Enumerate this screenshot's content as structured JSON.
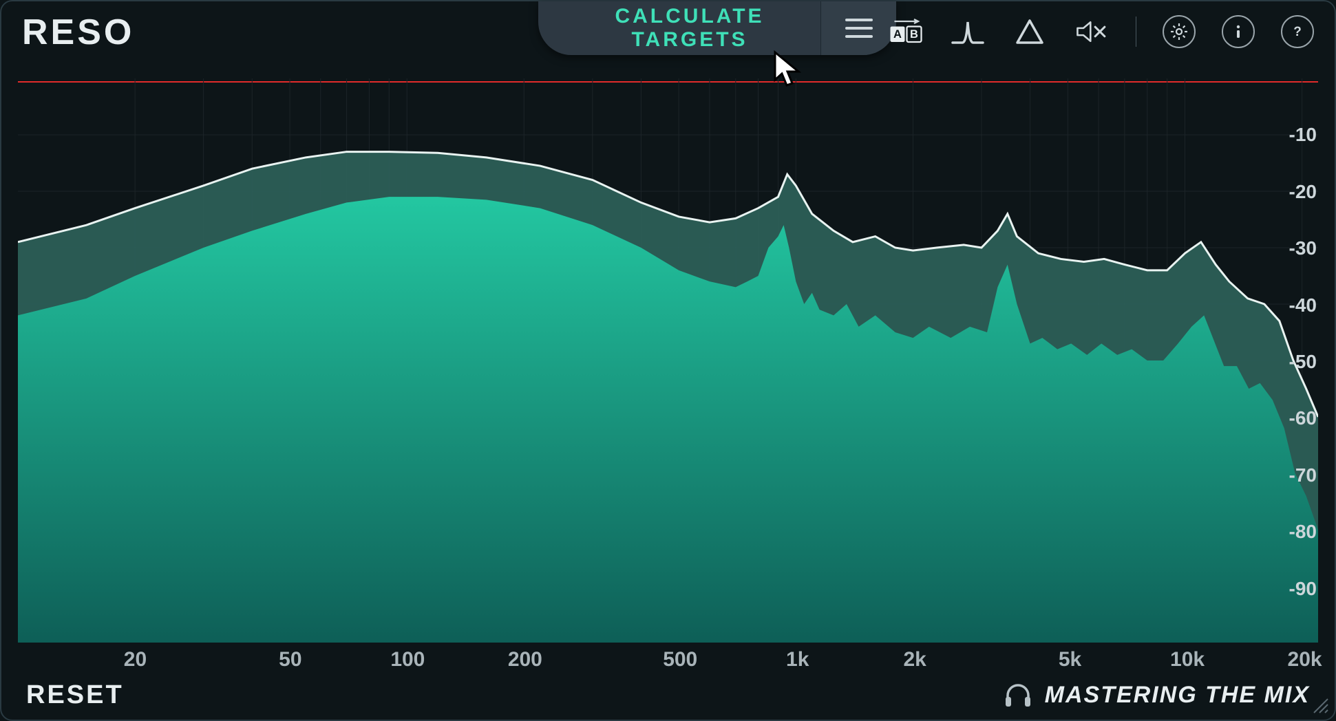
{
  "app": {
    "title": "RESO",
    "calculate_label": "CALCULATE TARGETS",
    "reset_label": "RESET",
    "company_name": "MASTERING THE MIX"
  },
  "colors": {
    "background": "#0d1518",
    "panel_border": "#2a3a42",
    "text_primary": "#e8eef0",
    "text_secondary": "#a9b4b9",
    "accent_teal": "#3fe0b8",
    "pill_bg": "#2d3842",
    "zero_line": "#e22b2b",
    "grid": "#1c2428",
    "curve_peak_stroke": "#e9f3f1",
    "curve_peak_fill": "#2d625a",
    "curve_rms_fill_top": "#23c7a1",
    "curve_rms_fill_bottom": "#0e5f57",
    "icon": "#cfd8dc"
  },
  "toolbar": {
    "items": [
      {
        "name": "ab-compare-icon",
        "interactable": true
      },
      {
        "name": "resonance-bell-icon",
        "interactable": true
      },
      {
        "name": "delta-triangle-icon",
        "interactable": true
      },
      {
        "name": "mute-icon",
        "interactable": true
      },
      {
        "name": "settings-gear-icon",
        "interactable": true
      },
      {
        "name": "info-icon",
        "interactable": true
      },
      {
        "name": "help-icon",
        "interactable": true
      }
    ]
  },
  "chart": {
    "type": "spectrum-analyzer",
    "x_scale": "log",
    "x_domain_hz": [
      10,
      22000
    ],
    "y_domain_db": [
      -100,
      0
    ],
    "x_ticks": [
      {
        "hz": 20,
        "label": "20"
      },
      {
        "hz": 50,
        "label": "50"
      },
      {
        "hz": 100,
        "label": "100"
      },
      {
        "hz": 200,
        "label": "200"
      },
      {
        "hz": 500,
        "label": "500"
      },
      {
        "hz": 1000,
        "label": "1k"
      },
      {
        "hz": 2000,
        "label": "2k"
      },
      {
        "hz": 5000,
        "label": "5k"
      },
      {
        "hz": 10000,
        "label": "10k"
      },
      {
        "hz": 20000,
        "label": "20k"
      }
    ],
    "y_ticks": [
      {
        "db": -10,
        "label": "-10"
      },
      {
        "db": -20,
        "label": "-20"
      },
      {
        "db": -30,
        "label": "-30"
      },
      {
        "db": -40,
        "label": "-40"
      },
      {
        "db": -50,
        "label": "-50"
      },
      {
        "db": -60,
        "label": "-60"
      },
      {
        "db": -70,
        "label": "-70"
      },
      {
        "db": -80,
        "label": "-80"
      },
      {
        "db": -90,
        "label": "-90"
      }
    ],
    "grid_x_hz": [
      20,
      30,
      40,
      50,
      60,
      70,
      80,
      90,
      100,
      200,
      300,
      400,
      500,
      600,
      700,
      800,
      900,
      1000,
      2000,
      3000,
      4000,
      5000,
      6000,
      7000,
      8000,
      9000,
      10000,
      20000
    ],
    "peak_curve_db": [
      [
        10,
        -29
      ],
      [
        15,
        -26
      ],
      [
        20,
        -23
      ],
      [
        30,
        -19
      ],
      [
        40,
        -16
      ],
      [
        55,
        -14
      ],
      [
        70,
        -13
      ],
      [
        90,
        -13
      ],
      [
        120,
        -13.2
      ],
      [
        160,
        -14
      ],
      [
        220,
        -15.5
      ],
      [
        300,
        -18
      ],
      [
        400,
        -22
      ],
      [
        500,
        -24.5
      ],
      [
        600,
        -25.5
      ],
      [
        700,
        -24.8
      ],
      [
        800,
        -23
      ],
      [
        900,
        -21
      ],
      [
        950,
        -17
      ],
      [
        1000,
        -19
      ],
      [
        1100,
        -24
      ],
      [
        1250,
        -27
      ],
      [
        1400,
        -29
      ],
      [
        1600,
        -28
      ],
      [
        1800,
        -30
      ],
      [
        2000,
        -30.5
      ],
      [
        2300,
        -30
      ],
      [
        2700,
        -29.5
      ],
      [
        3000,
        -30
      ],
      [
        3300,
        -27
      ],
      [
        3500,
        -24
      ],
      [
        3700,
        -28
      ],
      [
        4200,
        -31
      ],
      [
        4800,
        -32
      ],
      [
        5500,
        -32.5
      ],
      [
        6200,
        -32
      ],
      [
        7000,
        -33
      ],
      [
        8000,
        -34
      ],
      [
        9000,
        -34
      ],
      [
        10000,
        -31
      ],
      [
        11000,
        -29
      ],
      [
        12000,
        -33
      ],
      [
        13000,
        -36
      ],
      [
        14500,
        -39
      ],
      [
        16000,
        -40
      ],
      [
        17500,
        -43
      ],
      [
        19000,
        -50
      ],
      [
        20500,
        -55
      ],
      [
        22000,
        -60
      ]
    ],
    "rms_curve_db": [
      [
        10,
        -42
      ],
      [
        15,
        -39
      ],
      [
        20,
        -35
      ],
      [
        30,
        -30
      ],
      [
        40,
        -27
      ],
      [
        55,
        -24
      ],
      [
        70,
        -22
      ],
      [
        90,
        -21
      ],
      [
        120,
        -21
      ],
      [
        160,
        -21.5
      ],
      [
        220,
        -23
      ],
      [
        300,
        -26
      ],
      [
        400,
        -30
      ],
      [
        500,
        -34
      ],
      [
        600,
        -36
      ],
      [
        700,
        -37
      ],
      [
        750,
        -36
      ],
      [
        800,
        -35
      ],
      [
        850,
        -30
      ],
      [
        900,
        -28
      ],
      [
        930,
        -26
      ],
      [
        960,
        -30
      ],
      [
        1000,
        -36
      ],
      [
        1050,
        -40
      ],
      [
        1100,
        -38
      ],
      [
        1150,
        -41
      ],
      [
        1250,
        -42
      ],
      [
        1350,
        -40
      ],
      [
        1450,
        -44
      ],
      [
        1600,
        -42
      ],
      [
        1800,
        -45
      ],
      [
        2000,
        -46
      ],
      [
        2200,
        -44
      ],
      [
        2500,
        -46
      ],
      [
        2800,
        -44
      ],
      [
        3100,
        -45
      ],
      [
        3300,
        -37
      ],
      [
        3500,
        -33
      ],
      [
        3700,
        -40
      ],
      [
        4000,
        -47
      ],
      [
        4300,
        -46
      ],
      [
        4700,
        -48
      ],
      [
        5100,
        -47
      ],
      [
        5600,
        -49
      ],
      [
        6100,
        -47
      ],
      [
        6700,
        -49
      ],
      [
        7300,
        -48
      ],
      [
        8000,
        -50
      ],
      [
        8800,
        -50
      ],
      [
        9600,
        -47
      ],
      [
        10400,
        -44
      ],
      [
        11200,
        -42
      ],
      [
        11800,
        -46
      ],
      [
        12600,
        -51
      ],
      [
        13600,
        -51
      ],
      [
        14600,
        -55
      ],
      [
        15600,
        -54
      ],
      [
        16800,
        -57
      ],
      [
        18000,
        -62
      ],
      [
        19200,
        -70
      ],
      [
        20500,
        -74
      ],
      [
        22000,
        -80
      ]
    ]
  }
}
